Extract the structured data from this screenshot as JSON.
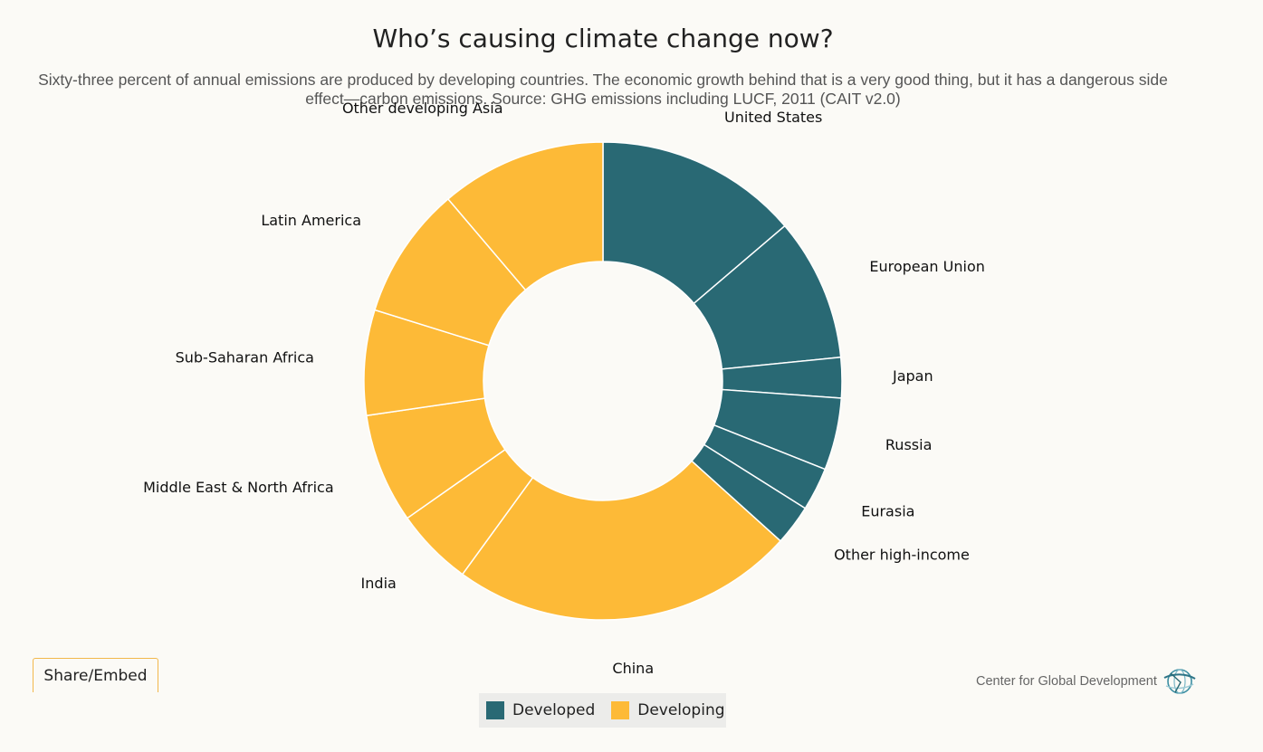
{
  "title": "Who’s causing climate change now?",
  "subtitle": "Sixty-three percent of annual emissions are produced by developing countries. The economic growth behind that is a very good thing, but it has a dangerous side effect—carbon emissions. Source: GHG emissions including LUCF, 2011 (CAIT v2.0)",
  "share_label": "Share/Embed",
  "credit": "Center for Global Development",
  "colors": {
    "developed": "#296974",
    "developing": "#fdba37",
    "border": "#ffffff"
  },
  "legend": [
    {
      "label": "Developed",
      "color": "#296974"
    },
    {
      "label": "Developing",
      "color": "#fdba37"
    }
  ],
  "chart_data": {
    "type": "pie",
    "donut": true,
    "title": "Who’s causing climate change now?",
    "legend_position": "bottom",
    "slices": [
      {
        "label": "United States",
        "value": 14.1,
        "group": "Developed"
      },
      {
        "label": "European Union",
        "value": 9.9,
        "group": "Developed"
      },
      {
        "label": "Japan",
        "value": 2.8,
        "group": "Developed"
      },
      {
        "label": "Russia",
        "value": 5.0,
        "group": "Developed"
      },
      {
        "label": "Eurasia",
        "value": 3.0,
        "group": "Developed"
      },
      {
        "label": "Other high-income",
        "value": 2.8,
        "group": "Developed"
      },
      {
        "label": "China",
        "value": 23.9,
        "group": "Developing"
      },
      {
        "label": "India",
        "value": 5.4,
        "group": "Developing"
      },
      {
        "label": "Middle East & North Africa",
        "value": 7.6,
        "group": "Developing"
      },
      {
        "label": "Sub-Saharan Africa",
        "value": 7.3,
        "group": "Developing"
      },
      {
        "label": "Latin America",
        "value": 9.2,
        "group": "Developing"
      },
      {
        "label": "Other developing Asia",
        "value": 11.5,
        "group": "Developing"
      }
    ]
  }
}
